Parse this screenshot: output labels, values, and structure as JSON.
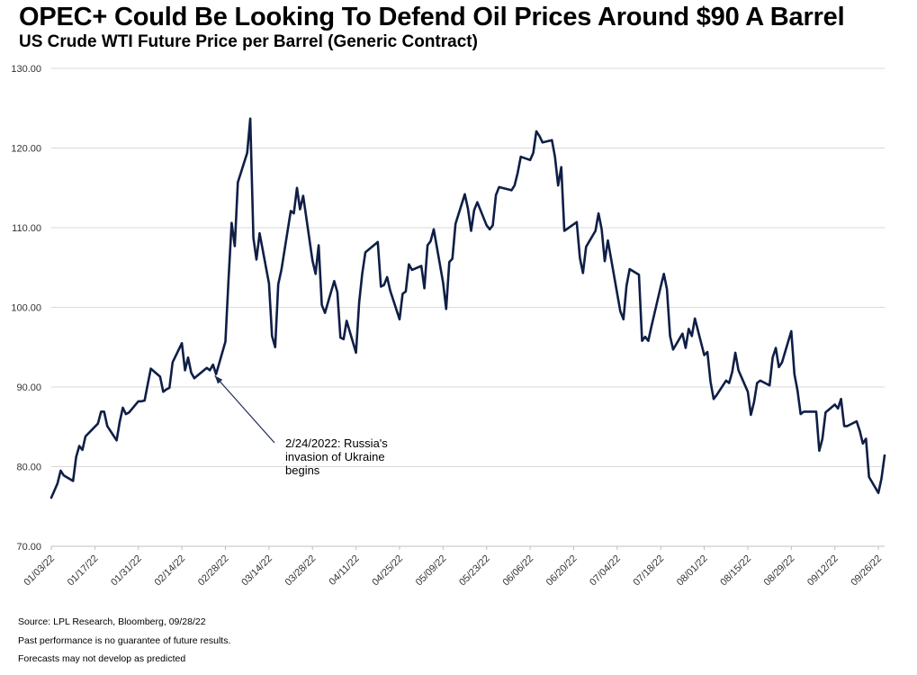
{
  "title": "OPEC+ Could Be Looking To Defend Oil Prices Around $90 A Barrel",
  "subtitle": "US Crude WTI Future Price per Barrel (Generic Contract)",
  "footer": {
    "source": "Source: LPL Research,  Bloomberg, 09/28/22",
    "disclaimer1": "Past performance is no guarantee of future results.",
    "disclaimer2": "Forecasts may not develop as predicted"
  },
  "colors": {
    "line": "#0f1e46",
    "grid": "#d9d9d9",
    "axis": "#bfbfbf"
  },
  "chart_data": {
    "type": "line",
    "title": "US Crude WTI Future Price per Barrel (Generic Contract)",
    "xlabel": "",
    "ylabel": "",
    "ylim": [
      70,
      130
    ],
    "yticks": [
      "70.00",
      "80.00",
      "90.00",
      "100.00",
      "110.00",
      "120.00",
      "130.00"
    ],
    "xlim": [
      "01/03/22",
      "09/28/22"
    ],
    "xticks": [
      "01/03/22",
      "01/17/22",
      "01/31/22",
      "02/14/22",
      "02/28/22",
      "03/14/22",
      "03/28/22",
      "04/11/22",
      "04/25/22",
      "05/09/22",
      "05/23/22",
      "06/06/22",
      "06/20/22",
      "07/04/22",
      "07/18/22",
      "08/01/22",
      "08/15/22",
      "08/29/22",
      "09/12/22",
      "09/26/22"
    ],
    "grid": true,
    "legend": "none",
    "annotation": {
      "date": "2022-02-24",
      "value": 92.1,
      "lines": [
        "2/24/2022: Russia's",
        "invasion of Ukraine",
        "begins"
      ]
    },
    "series": [
      {
        "points": [
          [
            "2022-01-03",
            76.1
          ],
          [
            "2022-01-04",
            77.0
          ],
          [
            "2022-01-05",
            77.9
          ],
          [
            "2022-01-06",
            79.5
          ],
          [
            "2022-01-07",
            78.9
          ],
          [
            "2022-01-10",
            78.2
          ],
          [
            "2022-01-11",
            81.2
          ],
          [
            "2022-01-12",
            82.6
          ],
          [
            "2022-01-13",
            82.1
          ],
          [
            "2022-01-14",
            83.8
          ],
          [
            "2022-01-18",
            85.4
          ],
          [
            "2022-01-19",
            86.9
          ],
          [
            "2022-01-20",
            86.9
          ],
          [
            "2022-01-21",
            85.1
          ],
          [
            "2022-01-24",
            83.3
          ],
          [
            "2022-01-25",
            85.6
          ],
          [
            "2022-01-26",
            87.4
          ],
          [
            "2022-01-27",
            86.6
          ],
          [
            "2022-01-28",
            86.8
          ],
          [
            "2022-01-31",
            88.2
          ],
          [
            "2022-02-01",
            88.2
          ],
          [
            "2022-02-02",
            88.3
          ],
          [
            "2022-02-03",
            90.3
          ],
          [
            "2022-02-04",
            92.3
          ],
          [
            "2022-02-07",
            91.3
          ],
          [
            "2022-02-08",
            89.4
          ],
          [
            "2022-02-09",
            89.7
          ],
          [
            "2022-02-10",
            89.9
          ],
          [
            "2022-02-11",
            93.1
          ],
          [
            "2022-02-14",
            95.5
          ],
          [
            "2022-02-15",
            92.1
          ],
          [
            "2022-02-16",
            93.7
          ],
          [
            "2022-02-17",
            91.8
          ],
          [
            "2022-02-18",
            91.1
          ],
          [
            "2022-02-22",
            92.4
          ],
          [
            "2022-02-23",
            92.1
          ],
          [
            "2022-02-24",
            92.8
          ],
          [
            "2022-02-25",
            91.6
          ],
          [
            "2022-02-28",
            95.7
          ],
          [
            "2022-03-01",
            103.4
          ],
          [
            "2022-03-02",
            110.6
          ],
          [
            "2022-03-03",
            107.7
          ],
          [
            "2022-03-04",
            115.7
          ],
          [
            "2022-03-07",
            119.4
          ],
          [
            "2022-03-08",
            123.7
          ],
          [
            "2022-03-09",
            108.7
          ],
          [
            "2022-03-10",
            106.0
          ],
          [
            "2022-03-11",
            109.3
          ],
          [
            "2022-03-14",
            103.0
          ],
          [
            "2022-03-15",
            96.4
          ],
          [
            "2022-03-16",
            95.0
          ],
          [
            "2022-03-17",
            102.9
          ],
          [
            "2022-03-18",
            104.7
          ],
          [
            "2022-03-21",
            112.1
          ],
          [
            "2022-03-22",
            111.8
          ],
          [
            "2022-03-23",
            115.0
          ],
          [
            "2022-03-24",
            112.3
          ],
          [
            "2022-03-25",
            114.0
          ],
          [
            "2022-03-28",
            105.9
          ],
          [
            "2022-03-29",
            104.2
          ],
          [
            "2022-03-30",
            107.8
          ],
          [
            "2022-03-31",
            100.3
          ],
          [
            "2022-04-01",
            99.3
          ],
          [
            "2022-04-04",
            103.3
          ],
          [
            "2022-04-05",
            101.9
          ],
          [
            "2022-04-06",
            96.2
          ],
          [
            "2022-04-07",
            96.0
          ],
          [
            "2022-04-08",
            98.3
          ],
          [
            "2022-04-11",
            94.3
          ],
          [
            "2022-04-12",
            100.6
          ],
          [
            "2022-04-13",
            104.2
          ],
          [
            "2022-04-14",
            106.9
          ],
          [
            "2022-04-18",
            108.2
          ],
          [
            "2022-04-19",
            102.6
          ],
          [
            "2022-04-20",
            102.8
          ],
          [
            "2022-04-21",
            103.8
          ],
          [
            "2022-04-22",
            102.1
          ],
          [
            "2022-04-25",
            98.5
          ],
          [
            "2022-04-26",
            101.7
          ],
          [
            "2022-04-27",
            102.0
          ],
          [
            "2022-04-28",
            105.4
          ],
          [
            "2022-04-29",
            104.7
          ],
          [
            "2022-05-02",
            105.2
          ],
          [
            "2022-05-03",
            102.4
          ],
          [
            "2022-05-04",
            107.8
          ],
          [
            "2022-05-05",
            108.3
          ],
          [
            "2022-05-06",
            109.8
          ],
          [
            "2022-05-09",
            103.1
          ],
          [
            "2022-05-10",
            99.8
          ],
          [
            "2022-05-11",
            105.7
          ],
          [
            "2022-05-12",
            106.1
          ],
          [
            "2022-05-13",
            110.5
          ],
          [
            "2022-05-16",
            114.2
          ],
          [
            "2022-05-17",
            112.4
          ],
          [
            "2022-05-18",
            109.6
          ],
          [
            "2022-05-19",
            112.2
          ],
          [
            "2022-05-20",
            113.2
          ],
          [
            "2022-05-23",
            110.3
          ],
          [
            "2022-05-24",
            109.8
          ],
          [
            "2022-05-25",
            110.3
          ],
          [
            "2022-05-26",
            114.1
          ],
          [
            "2022-05-27",
            115.1
          ],
          [
            "2022-05-31",
            114.7
          ],
          [
            "2022-06-01",
            115.3
          ],
          [
            "2022-06-02",
            116.9
          ],
          [
            "2022-06-03",
            118.9
          ],
          [
            "2022-06-06",
            118.5
          ],
          [
            "2022-06-07",
            119.4
          ],
          [
            "2022-06-08",
            122.1
          ],
          [
            "2022-06-09",
            121.5
          ],
          [
            "2022-06-10",
            120.7
          ],
          [
            "2022-06-13",
            121.0
          ],
          [
            "2022-06-14",
            118.9
          ],
          [
            "2022-06-15",
            115.3
          ],
          [
            "2022-06-16",
            117.6
          ],
          [
            "2022-06-17",
            109.6
          ],
          [
            "2022-06-21",
            110.7
          ],
          [
            "2022-06-22",
            106.2
          ],
          [
            "2022-06-23",
            104.3
          ],
          [
            "2022-06-24",
            107.6
          ],
          [
            "2022-06-27",
            109.6
          ],
          [
            "2022-06-28",
            111.8
          ],
          [
            "2022-06-29",
            109.8
          ],
          [
            "2022-06-30",
            105.8
          ],
          [
            "2022-07-01",
            108.4
          ],
          [
            "2022-07-05",
            99.5
          ],
          [
            "2022-07-06",
            98.5
          ],
          [
            "2022-07-07",
            102.7
          ],
          [
            "2022-07-08",
            104.8
          ],
          [
            "2022-07-11",
            104.1
          ],
          [
            "2022-07-12",
            95.8
          ],
          [
            "2022-07-13",
            96.3
          ],
          [
            "2022-07-14",
            95.8
          ],
          [
            "2022-07-15",
            97.6
          ],
          [
            "2022-07-18",
            102.6
          ],
          [
            "2022-07-19",
            104.2
          ],
          [
            "2022-07-20",
            102.3
          ],
          [
            "2022-07-21",
            96.4
          ],
          [
            "2022-07-22",
            94.7
          ],
          [
            "2022-07-25",
            96.7
          ],
          [
            "2022-07-26",
            94.9
          ],
          [
            "2022-07-27",
            97.3
          ],
          [
            "2022-07-28",
            96.4
          ],
          [
            "2022-07-29",
            98.6
          ],
          [
            "2022-08-01",
            94.0
          ],
          [
            "2022-08-02",
            94.4
          ],
          [
            "2022-08-03",
            90.7
          ],
          [
            "2022-08-04",
            88.5
          ],
          [
            "2022-08-05",
            89.0
          ],
          [
            "2022-08-08",
            90.8
          ],
          [
            "2022-08-09",
            90.5
          ],
          [
            "2022-08-10",
            91.9
          ],
          [
            "2022-08-11",
            94.3
          ],
          [
            "2022-08-12",
            92.1
          ],
          [
            "2022-08-15",
            89.4
          ],
          [
            "2022-08-16",
            86.5
          ],
          [
            "2022-08-17",
            88.1
          ],
          [
            "2022-08-18",
            90.5
          ],
          [
            "2022-08-19",
            90.8
          ],
          [
            "2022-08-22",
            90.2
          ],
          [
            "2022-08-23",
            93.7
          ],
          [
            "2022-08-24",
            94.9
          ],
          [
            "2022-08-25",
            92.5
          ],
          [
            "2022-08-26",
            93.1
          ],
          [
            "2022-08-29",
            97.0
          ],
          [
            "2022-08-30",
            91.6
          ],
          [
            "2022-08-31",
            89.5
          ],
          [
            "2022-09-01",
            86.6
          ],
          [
            "2022-09-02",
            86.9
          ],
          [
            "2022-09-06",
            86.9
          ],
          [
            "2022-09-07",
            82.0
          ],
          [
            "2022-09-08",
            83.5
          ],
          [
            "2022-09-09",
            86.8
          ],
          [
            "2022-09-12",
            87.8
          ],
          [
            "2022-09-13",
            87.3
          ],
          [
            "2022-09-14",
            88.5
          ],
          [
            "2022-09-15",
            85.1
          ],
          [
            "2022-09-16",
            85.1
          ],
          [
            "2022-09-19",
            85.7
          ],
          [
            "2022-09-20",
            84.5
          ],
          [
            "2022-09-21",
            82.9
          ],
          [
            "2022-09-22",
            83.5
          ],
          [
            "2022-09-23",
            78.7
          ],
          [
            "2022-09-26",
            76.7
          ],
          [
            "2022-09-27",
            78.5
          ],
          [
            "2022-09-28",
            81.4
          ]
        ]
      }
    ]
  }
}
